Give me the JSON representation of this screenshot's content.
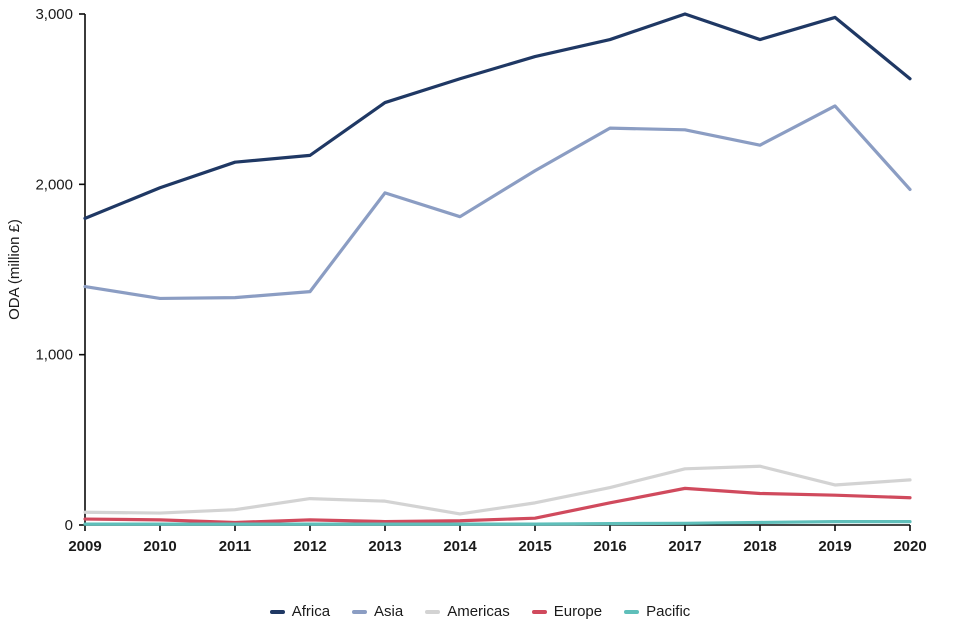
{
  "chart_data": {
    "type": "line",
    "title": "",
    "xlabel": "",
    "ylabel": "ODA (million £)",
    "x": [
      2009,
      2010,
      2011,
      2012,
      2013,
      2014,
      2015,
      2016,
      2017,
      2018,
      2019,
      2020
    ],
    "ylim": [
      0,
      3000
    ],
    "yticks": [
      0,
      1000,
      2000,
      3000
    ],
    "ytick_labels": [
      "0",
      "1,000",
      "2,000",
      "3,000"
    ],
    "grid": false,
    "legend_position": "bottom",
    "axis_color": "#0a0a0a",
    "text_color": "#1a1a1a",
    "series": [
      {
        "name": "Africa",
        "color": "#1f3864",
        "values": [
          1800,
          1980,
          2130,
          2170,
          2480,
          2620,
          2750,
          2850,
          3000,
          2850,
          2980,
          2620
        ]
      },
      {
        "name": "Asia",
        "color": "#8b9dc3",
        "values": [
          1400,
          1330,
          1335,
          1370,
          1950,
          1810,
          2080,
          2330,
          2320,
          2230,
          2460,
          1970
        ]
      },
      {
        "name": "Americas",
        "color": "#d3d3d3",
        "values": [
          75,
          70,
          90,
          155,
          140,
          65,
          130,
          220,
          330,
          345,
          235,
          265
        ]
      },
      {
        "name": "Europe",
        "color": "#d04a5d",
        "values": [
          35,
          30,
          15,
          30,
          20,
          25,
          40,
          130,
          215,
          185,
          175,
          160
        ]
      },
      {
        "name": "Pacific",
        "color": "#5fbfba",
        "values": [
          5,
          5,
          5,
          5,
          5,
          5,
          5,
          8,
          10,
          15,
          20,
          20
        ]
      }
    ]
  }
}
